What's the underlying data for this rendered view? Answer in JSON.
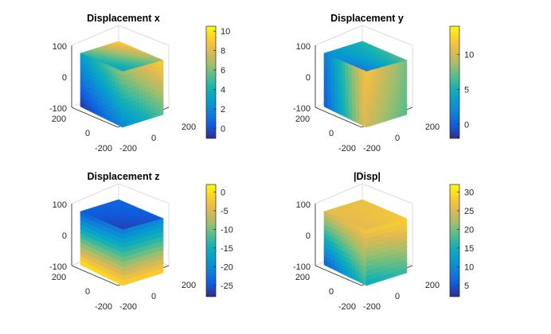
{
  "chart_data": [
    {
      "type": "heatmap",
      "subtype": "3d-cube-scatter",
      "title": "Displacement x",
      "z_ticks": [
        "100",
        "0",
        "-100"
      ],
      "y_ticks": [
        "200",
        "0",
        "-200"
      ],
      "x_ticks": [
        "-200",
        "0",
        "200"
      ],
      "colorbar": {
        "range": [
          -1,
          10.5
        ],
        "ticks": [
          0,
          2,
          4,
          6,
          8,
          10
        ]
      },
      "colormap": "parula",
      "face_levels": {
        "top": {
          "nw": 0.5,
          "ne": 0.9,
          "se": 0.65,
          "sw": 0.35
        },
        "left": {
          "tl": 0.35,
          "tr": 0.65,
          "br": 0.25,
          "bl": 0.02
        },
        "right": {
          "tl": 0.65,
          "tr": 0.9,
          "br": 0.55,
          "bl": 0.25
        }
      }
    },
    {
      "type": "heatmap",
      "subtype": "3d-cube-scatter",
      "title": "Displacement y",
      "z_ticks": [
        "100",
        "0",
        "-100"
      ],
      "y_ticks": [
        "200",
        "0",
        "-200"
      ],
      "x_ticks": [
        "-200",
        "0",
        "200"
      ],
      "colorbar": {
        "range": [
          -2,
          14
        ],
        "ticks": [
          0,
          5,
          10
        ]
      },
      "colormap": "parula",
      "face_levels": {
        "top": {
          "nw": 0.3,
          "ne": 0.45,
          "se": 0.55,
          "sw": 0.2
        },
        "left": {
          "tl": 0.2,
          "tr": 0.85,
          "br": 0.8,
          "bl": 0.1
        },
        "right": {
          "tl": 0.85,
          "tr": 0.6,
          "br": 0.55,
          "bl": 0.75
        }
      }
    },
    {
      "type": "heatmap",
      "subtype": "3d-cube-scatter",
      "title": "Displacement z",
      "z_ticks": [
        "100",
        "0",
        "-100"
      ],
      "y_ticks": [
        "200",
        "0",
        "-200"
      ],
      "x_ticks": [
        "-200",
        "0",
        "200"
      ],
      "colorbar": {
        "range": [
          -28,
          2
        ],
        "ticks": [
          0,
          -5,
          -10,
          -15,
          -20,
          -25
        ]
      },
      "colormap": "parula",
      "face_levels": {
        "top": {
          "nw": 0.12,
          "ne": 0.15,
          "se": 0.1,
          "sw": 0.05
        },
        "left": {
          "tl": 0.1,
          "tr": 0.2,
          "br": 0.92,
          "bl": 0.95
        },
        "right": {
          "tl": 0.2,
          "tr": 0.25,
          "br": 0.9,
          "bl": 0.9
        }
      }
    },
    {
      "type": "heatmap",
      "subtype": "3d-cube-scatter",
      "title": "|Disp|",
      "z_ticks": [
        "100",
        "0",
        "-100"
      ],
      "y_ticks": [
        "200",
        "0",
        "-200"
      ],
      "x_ticks": [
        "-200",
        "0",
        "200"
      ],
      "colorbar": {
        "range": [
          2,
          32
        ],
        "ticks": [
          5,
          10,
          15,
          20,
          25,
          30
        ]
      },
      "colormap": "parula",
      "face_levels": {
        "top": {
          "nw": 0.8,
          "ne": 0.82,
          "se": 0.86,
          "sw": 0.78
        },
        "left": {
          "tl": 0.75,
          "tr": 0.85,
          "br": 0.5,
          "bl": 0.1
        },
        "right": {
          "tl": 0.85,
          "tr": 0.9,
          "br": 0.5,
          "bl": 0.4
        }
      }
    }
  ]
}
